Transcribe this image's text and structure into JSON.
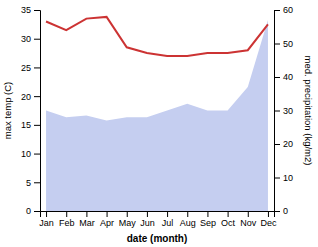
{
  "chart_data": {
    "type": "line",
    "xlabel": "date (month)",
    "ylabel": "max temp (C)",
    "y2label": "med. precipitation (kg/m2)",
    "categories": [
      "Jan",
      "Feb",
      "Mar",
      "Apr",
      "May",
      "Jun",
      "Jul",
      "Aug",
      "Sep",
      "Oct",
      "Nov",
      "Dec"
    ],
    "series": [
      {
        "type": "area",
        "axis": "y2",
        "color": "#c5cef0",
        "values": [
          30.0,
          28.0,
          28.5,
          27.0,
          28.0,
          28.0,
          30.0,
          32.0,
          30.0,
          30.0,
          37.0,
          57.0
        ]
      },
      {
        "type": "line",
        "color": "#cc3333",
        "values": [
          33.0,
          31.5,
          33.5,
          33.8,
          28.5,
          27.5,
          27.0,
          27.0,
          27.5,
          27.5,
          28.0,
          32.5
        ]
      }
    ],
    "ylim": [
      0,
      35
    ],
    "yticks": [
      0,
      5,
      10,
      15,
      20,
      25,
      30,
      35
    ],
    "y2lim": [
      0,
      60
    ],
    "y2ticks": [
      0,
      10,
      20,
      30,
      40,
      50,
      60
    ],
    "grid": false
  }
}
